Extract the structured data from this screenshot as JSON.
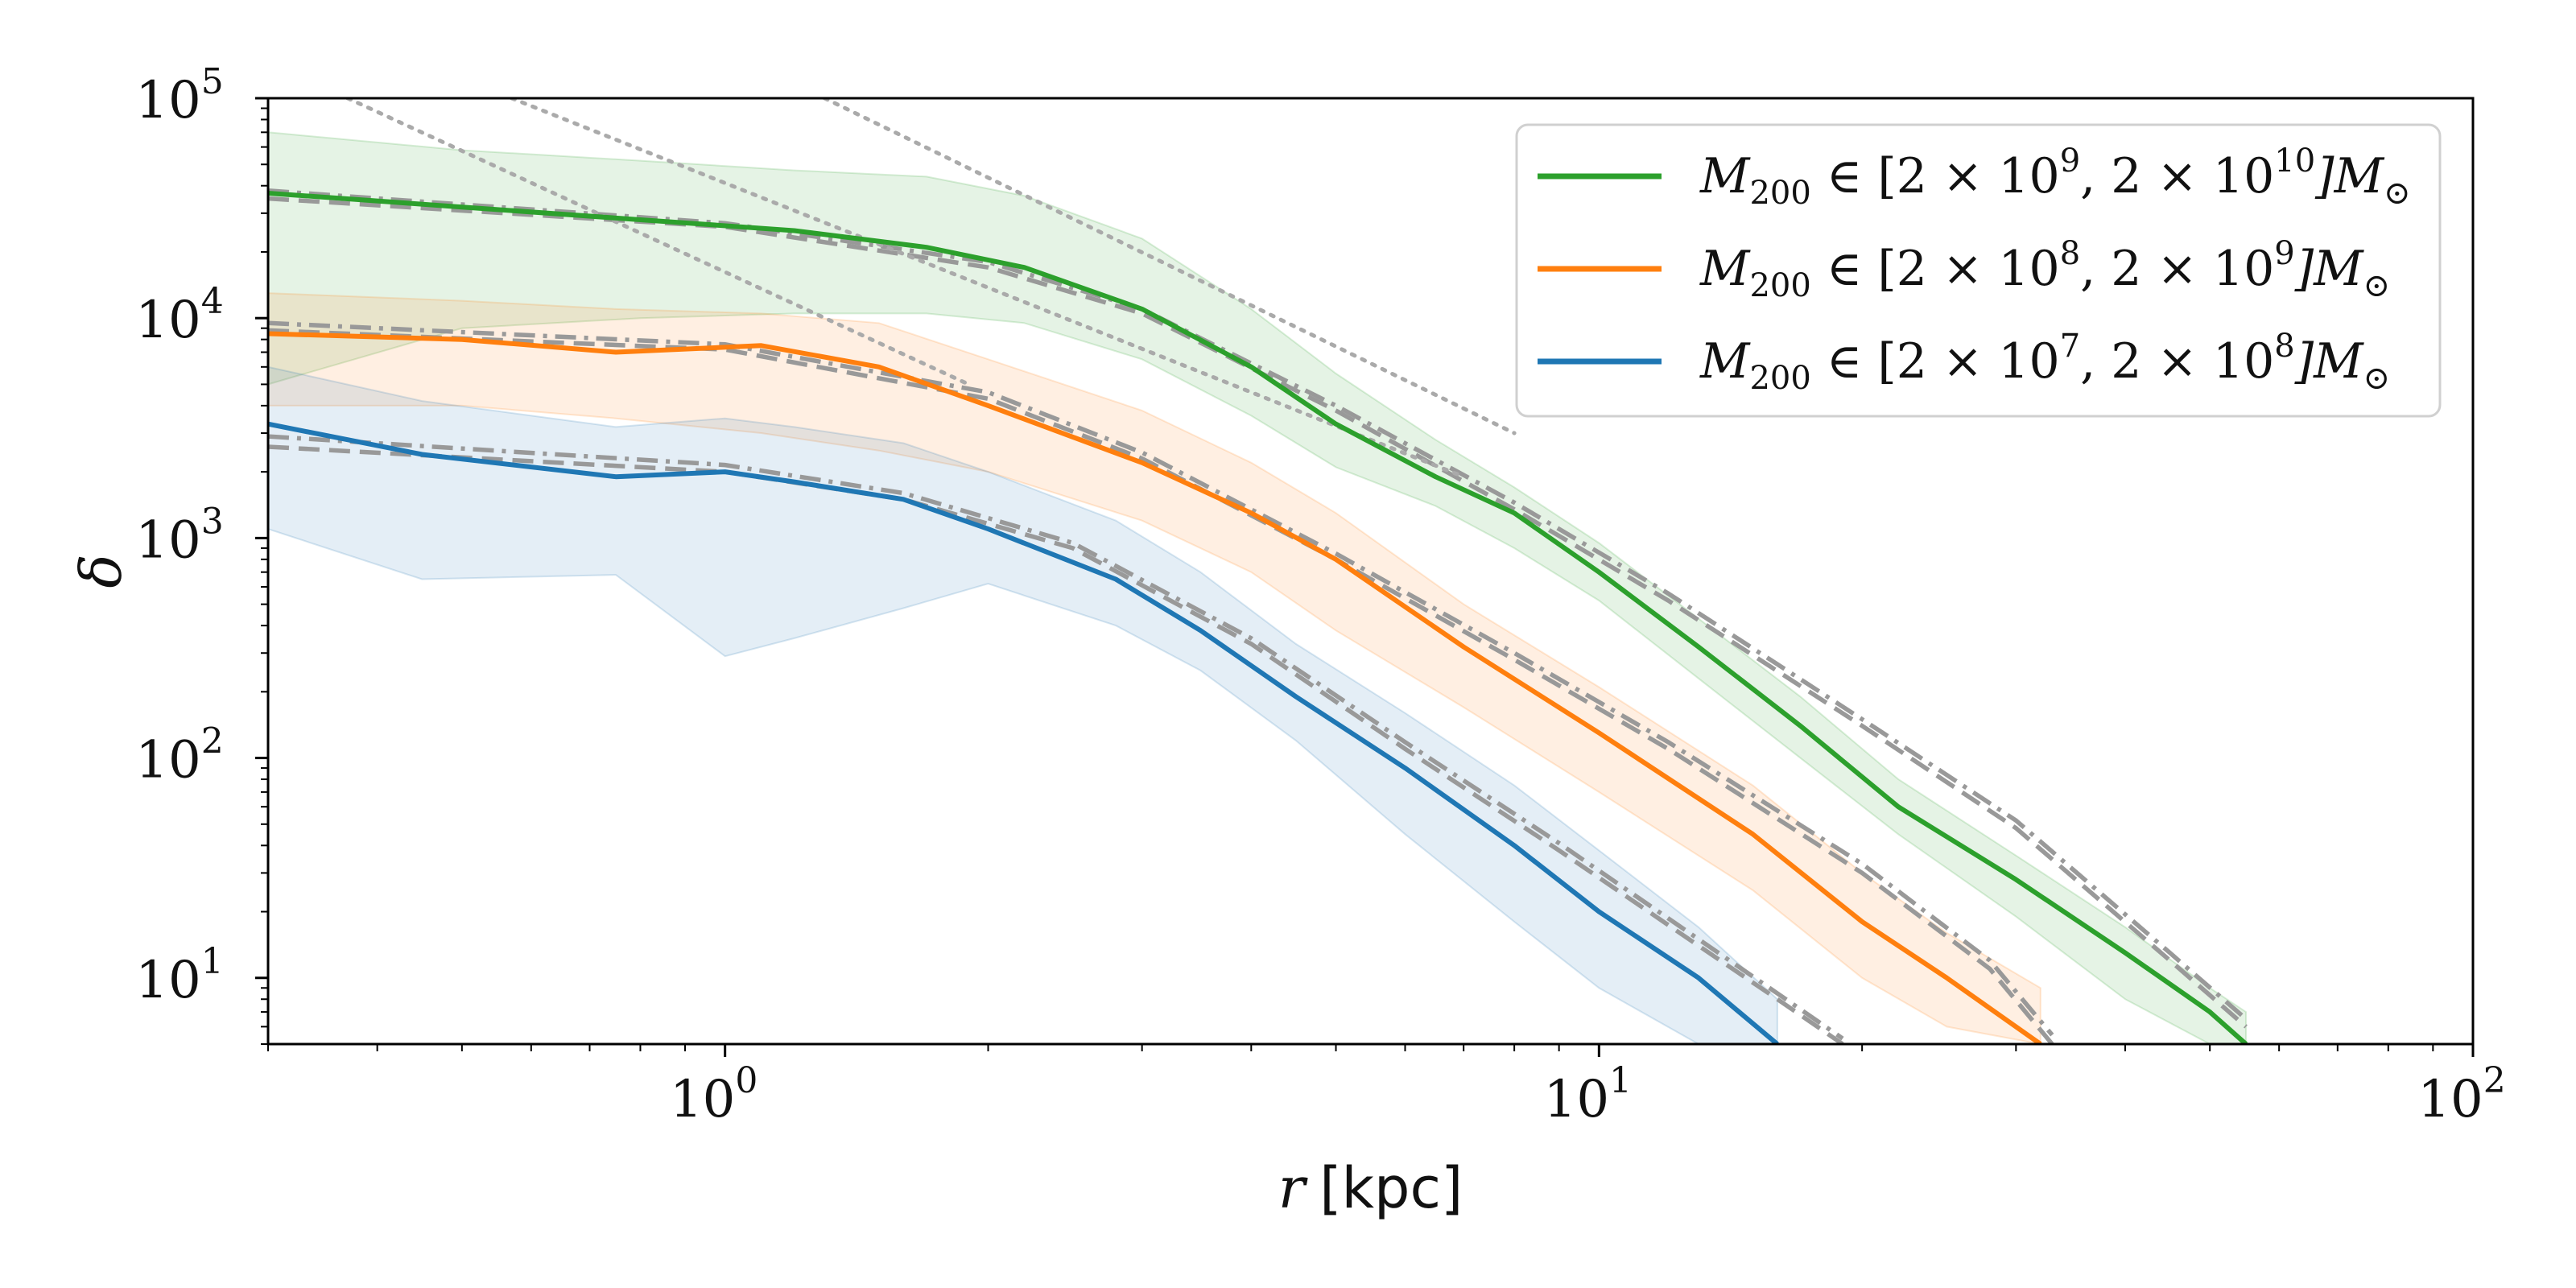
{
  "chart_data": {
    "type": "line",
    "xscale": "log",
    "yscale": "log",
    "xlim": [
      0.3,
      100
    ],
    "ylim": [
      5,
      100000
    ],
    "xlabel": {
      "var": "r",
      "unit": "[kpc]"
    },
    "ylabel": "δ",
    "x_ticks": [
      {
        "value": 1,
        "base": "10",
        "exp": "0"
      },
      {
        "value": 10,
        "base": "10",
        "exp": "1"
      },
      {
        "value": 100,
        "base": "10",
        "exp": "2"
      }
    ],
    "y_ticks": [
      {
        "value": 10,
        "base": "10",
        "exp": "1"
      },
      {
        "value": 100,
        "base": "10",
        "exp": "2"
      },
      {
        "value": 1000,
        "base": "10",
        "exp": "3"
      },
      {
        "value": 10000,
        "base": "10",
        "exp": "4"
      },
      {
        "value": 100000,
        "base": "10",
        "exp": "5"
      }
    ],
    "legend_position": "top-right",
    "series": [
      {
        "name": "M200 ∈ [2 × 10^9, 2 × 10^10] M⊙",
        "legend": {
          "pre": "M",
          "sub": "200",
          "mid1": " ∈ [2 × 10",
          "exp1": "9",
          "mid2": ", 2 × 10",
          "exp2": "10",
          "end": "]M",
          "sun": "⊙"
        },
        "color": "#2ca02c",
        "x": [
          0.3,
          0.5,
          0.8,
          1.2,
          1.7,
          2.2,
          3,
          4,
          5,
          6.5,
          8,
          10,
          13,
          17,
          22,
          30,
          40,
          50,
          55
        ],
        "y": [
          37000,
          32000,
          28000,
          25000,
          21000,
          17000,
          11000,
          6000,
          3300,
          1900,
          1300,
          700,
          320,
          140,
          60,
          28,
          13,
          7,
          5
        ],
        "band_low": [
          5000,
          9000,
          10000,
          10500,
          10500,
          9500,
          6500,
          3600,
          2100,
          1400,
          900,
          520,
          230,
          100,
          45,
          19,
          8,
          5,
          5
        ],
        "band_high": [
          70000,
          58000,
          52000,
          47000,
          44000,
          36000,
          23000,
          11000,
          5600,
          2800,
          1700,
          950,
          430,
          190,
          80,
          36,
          17,
          9,
          7
        ]
      },
      {
        "name": "M200 ∈ [2 × 10^8, 2 × 10^9] M⊙",
        "legend": {
          "pre": "M",
          "sub": "200",
          "mid1": " ∈ [2 × 10",
          "exp1": "8",
          "mid2": ", 2 × 10",
          "exp2": "9",
          "end": "]M",
          "sun": "⊙"
        },
        "color": "#ff7f0e",
        "x": [
          0.3,
          0.5,
          0.75,
          1.1,
          1.5,
          2,
          3,
          4,
          5,
          7,
          10,
          15,
          20,
          25,
          32
        ],
        "y": [
          8500,
          8000,
          7000,
          7500,
          6000,
          4000,
          2200,
          1300,
          800,
          320,
          130,
          45,
          18,
          10,
          5
        ],
        "band_low": [
          4000,
          4000,
          3500,
          3000,
          2500,
          2000,
          1200,
          700,
          380,
          170,
          70,
          25,
          10,
          6,
          5
        ],
        "band_high": [
          13000,
          12000,
          11000,
          10500,
          9500,
          6500,
          3800,
          2200,
          1300,
          500,
          210,
          75,
          30,
          16,
          9
        ]
      },
      {
        "name": "M200 ∈ [2 × 10^7, 2 × 10^8] M⊙",
        "legend": {
          "pre": "M",
          "sub": "200",
          "mid1": " ∈ [2 × 10",
          "exp1": "7",
          "mid2": ", 2 × 10",
          "exp2": "8",
          "end": "]M",
          "sun": "⊙"
        },
        "color": "#1f77b4",
        "x": [
          0.3,
          0.45,
          0.75,
          1,
          1.2,
          1.6,
          2,
          2.8,
          3.5,
          4.5,
          6,
          8,
          10,
          13,
          16
        ],
        "y": [
          3300,
          2400,
          1900,
          2000,
          1800,
          1500,
          1100,
          650,
          380,
          190,
          90,
          40,
          20,
          10,
          5
        ],
        "band_low": [
          1100,
          650,
          680,
          290,
          350,
          480,
          620,
          400,
          250,
          120,
          45,
          18,
          9,
          5,
          5
        ],
        "band_high": [
          6000,
          4200,
          3200,
          3500,
          3200,
          2700,
          2000,
          1200,
          700,
          330,
          160,
          75,
          38,
          17,
          8
        ]
      }
    ],
    "reference_lines": [
      {
        "style": "dashed",
        "color": "#999999",
        "x": [
          0.3,
          1,
          2,
          3,
          5,
          8,
          12,
          20,
          30,
          45,
          55
        ],
        "y": [
          35000,
          26000,
          17000,
          10500,
          3800,
          1350,
          520,
          140,
          48,
          12,
          6
        ]
      },
      {
        "style": "dashdot",
        "color": "#999999",
        "x": [
          0.3,
          1,
          2,
          3,
          5,
          8,
          12,
          20,
          30,
          45,
          55
        ],
        "y": [
          38000,
          27000,
          18000,
          11000,
          4000,
          1450,
          560,
          150,
          52,
          13,
          6.5
        ]
      },
      {
        "style": "dashed",
        "color": "#999999",
        "x": [
          0.3,
          1,
          2,
          3,
          5,
          8,
          12,
          20,
          28,
          33
        ],
        "y": [
          8800,
          7200,
          4300,
          2300,
          800,
          280,
          110,
          30,
          11,
          5
        ]
      },
      {
        "style": "dashdot",
        "color": "#999999",
        "x": [
          0.3,
          1,
          2,
          3,
          5,
          8,
          12,
          20,
          28,
          33
        ],
        "y": [
          9500,
          7600,
          4600,
          2450,
          850,
          300,
          118,
          33,
          12,
          5.5
        ]
      },
      {
        "style": "dashed",
        "color": "#999999",
        "x": [
          0.3,
          1,
          1.6,
          2.5,
          4,
          6,
          9,
          13,
          16,
          19
        ],
        "y": [
          2600,
          2000,
          1500,
          900,
          330,
          110,
          38,
          14,
          8,
          5
        ]
      },
      {
        "style": "dashdot",
        "color": "#999999",
        "x": [
          0.3,
          1,
          1.6,
          2.5,
          4,
          6,
          9,
          13,
          16,
          19
        ],
        "y": [
          2900,
          2150,
          1600,
          950,
          350,
          118,
          41,
          15,
          8.5,
          5.3
        ]
      },
      {
        "style": "dotted",
        "color": "#aaaaaa",
        "x": [
          0.37,
          1.9
        ],
        "y": [
          100000,
          5000
        ]
      },
      {
        "style": "dotted",
        "color": "#aaaaaa",
        "x": [
          0.57,
          7
        ],
        "y": [
          100000,
          1900
        ]
      },
      {
        "style": "dotted",
        "color": "#aaaaaa",
        "x": [
          1.3,
          8
        ],
        "y": [
          100000,
          3000
        ]
      }
    ]
  }
}
